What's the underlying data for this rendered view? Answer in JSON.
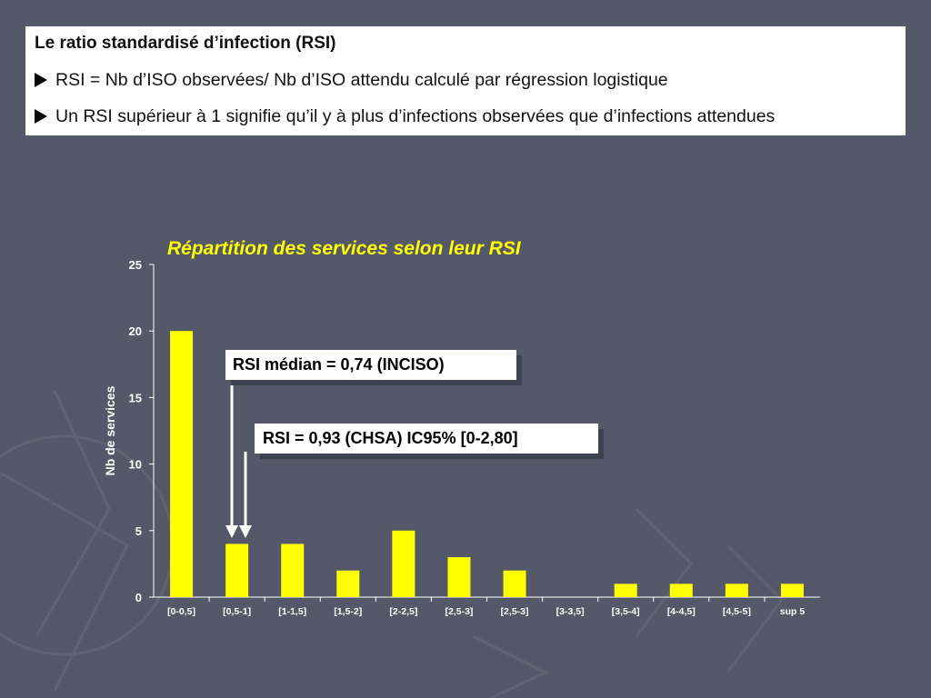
{
  "info": {
    "title": "Le ratio standardisé d’infection (RSI)",
    "lines": [
      "RSI = Nb d’ISO observées/ Nb d’ISO attendu calculé par régression logistique",
      "Un RSI supérieur à 1 signifie qu’il y à plus d’infections observées que d’infections attendues"
    ]
  },
  "callouts": {
    "median": "RSI médian = 0,74 (INCISO)",
    "chsa": "RSI = 0,93 (CHSA) IC95% [0-2,80]"
  },
  "colors": {
    "background": "#555868",
    "bar": "#ffff00",
    "title": "#ffff00",
    "axis": "#ffffff"
  },
  "chart_data": {
    "type": "bar",
    "title": "Répartition des services selon leur RSI",
    "xlabel": "",
    "ylabel": "Nb de services",
    "ylim": [
      0,
      25
    ],
    "yticks": [
      0,
      5,
      10,
      15,
      20,
      25
    ],
    "categories": [
      "[0-0,5]",
      "[0,5-1]",
      "[1-1,5]",
      "[1,5-2]",
      "[2-2,5]",
      "[2,5-3]",
      "[2,5-3]",
      "[3-3,5]",
      "[3,5-4]",
      "[4-4,5]",
      "[4,5-5]",
      "sup 5"
    ],
    "values": [
      20,
      4,
      4,
      2,
      5,
      3,
      2,
      0,
      1,
      1,
      1,
      1
    ],
    "grid": false,
    "legend": "none"
  }
}
